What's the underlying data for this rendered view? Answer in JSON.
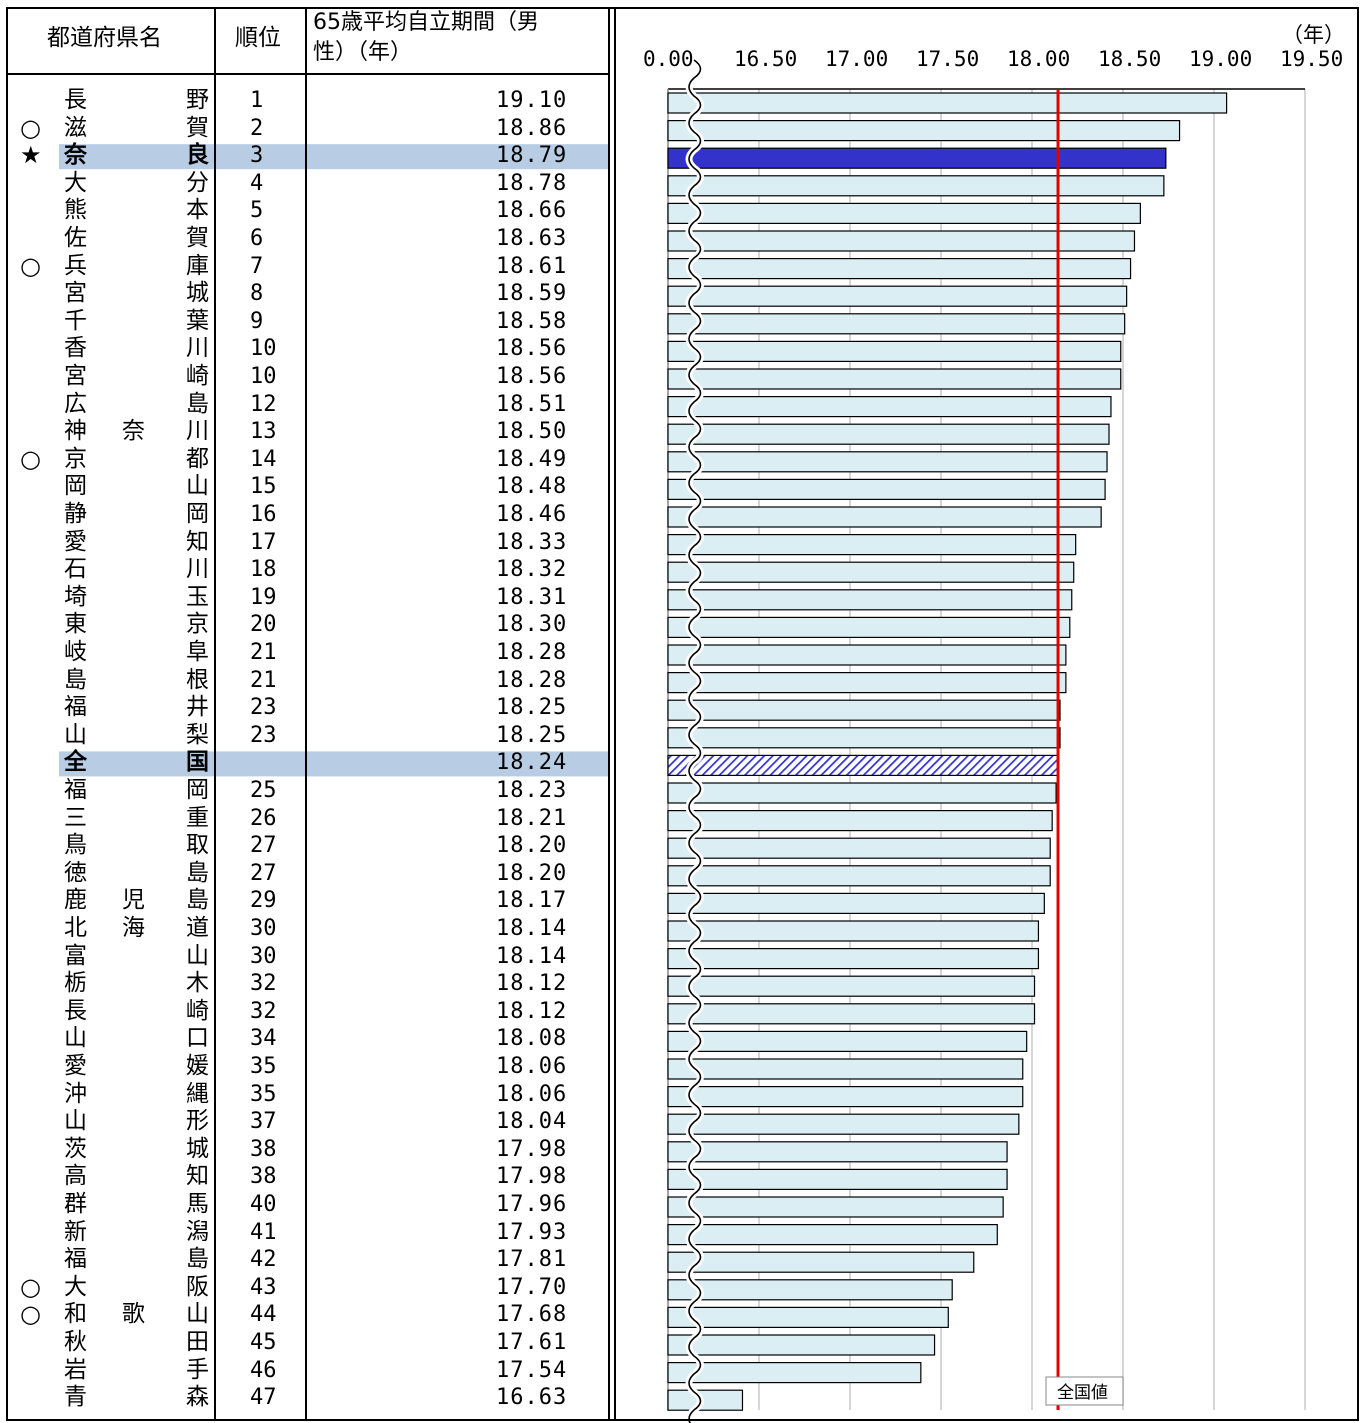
{
  "headers": {
    "pref": "都道府県名",
    "rank": "順位",
    "value_line1": "65歳平均自立期間（男",
    "value_line2": "性）（年）"
  },
  "rows": [
    {
      "mark": "",
      "chars": [
        "長",
        "",
        "野"
      ],
      "rank": "1",
      "value": "19.10"
    },
    {
      "mark": "○",
      "chars": [
        "滋",
        "",
        "賀"
      ],
      "rank": "2",
      "value": "18.86"
    },
    {
      "mark": "★",
      "chars": [
        "奈",
        "",
        "良"
      ],
      "rank": "3",
      "value": "18.79",
      "highlight": "nara"
    },
    {
      "mark": "",
      "chars": [
        "大",
        "",
        "分"
      ],
      "rank": "4",
      "value": "18.78"
    },
    {
      "mark": "",
      "chars": [
        "熊",
        "",
        "本"
      ],
      "rank": "5",
      "value": "18.66"
    },
    {
      "mark": "",
      "chars": [
        "佐",
        "",
        "賀"
      ],
      "rank": "6",
      "value": "18.63"
    },
    {
      "mark": "○",
      "chars": [
        "兵",
        "",
        "庫"
      ],
      "rank": "7",
      "value": "18.61"
    },
    {
      "mark": "",
      "chars": [
        "宮",
        "",
        "城"
      ],
      "rank": "8",
      "value": "18.59"
    },
    {
      "mark": "",
      "chars": [
        "千",
        "",
        "葉"
      ],
      "rank": "9",
      "value": "18.58"
    },
    {
      "mark": "",
      "chars": [
        "香",
        "",
        "川"
      ],
      "rank": "10",
      "value": "18.56"
    },
    {
      "mark": "",
      "chars": [
        "宮",
        "",
        "崎"
      ],
      "rank": "10",
      "value": "18.56"
    },
    {
      "mark": "",
      "chars": [
        "広",
        "",
        "島"
      ],
      "rank": "12",
      "value": "18.51"
    },
    {
      "mark": "",
      "chars": [
        "神",
        "奈",
        "川"
      ],
      "rank": "13",
      "value": "18.50"
    },
    {
      "mark": "○",
      "chars": [
        "京",
        "",
        "都"
      ],
      "rank": "14",
      "value": "18.49"
    },
    {
      "mark": "",
      "chars": [
        "岡",
        "",
        "山"
      ],
      "rank": "15",
      "value": "18.48"
    },
    {
      "mark": "",
      "chars": [
        "静",
        "",
        "岡"
      ],
      "rank": "16",
      "value": "18.46"
    },
    {
      "mark": "",
      "chars": [
        "愛",
        "",
        "知"
      ],
      "rank": "17",
      "value": "18.33"
    },
    {
      "mark": "",
      "chars": [
        "石",
        "",
        "川"
      ],
      "rank": "18",
      "value": "18.32"
    },
    {
      "mark": "",
      "chars": [
        "埼",
        "",
        "玉"
      ],
      "rank": "19",
      "value": "18.31"
    },
    {
      "mark": "",
      "chars": [
        "東",
        "",
        "京"
      ],
      "rank": "20",
      "value": "18.30"
    },
    {
      "mark": "",
      "chars": [
        "岐",
        "",
        "阜"
      ],
      "rank": "21",
      "value": "18.28"
    },
    {
      "mark": "",
      "chars": [
        "島",
        "",
        "根"
      ],
      "rank": "21",
      "value": "18.28"
    },
    {
      "mark": "",
      "chars": [
        "福",
        "",
        "井"
      ],
      "rank": "23",
      "value": "18.25"
    },
    {
      "mark": "",
      "chars": [
        "山",
        "",
        "梨"
      ],
      "rank": "23",
      "value": "18.25"
    },
    {
      "mark": "",
      "chars": [
        "全",
        "",
        "国"
      ],
      "rank": "",
      "value": "18.24",
      "highlight": "national"
    },
    {
      "mark": "",
      "chars": [
        "福",
        "",
        "岡"
      ],
      "rank": "25",
      "value": "18.23"
    },
    {
      "mark": "",
      "chars": [
        "三",
        "",
        "重"
      ],
      "rank": "26",
      "value": "18.21"
    },
    {
      "mark": "",
      "chars": [
        "鳥",
        "",
        "取"
      ],
      "rank": "27",
      "value": "18.20"
    },
    {
      "mark": "",
      "chars": [
        "徳",
        "",
        "島"
      ],
      "rank": "27",
      "value": "18.20"
    },
    {
      "mark": "",
      "chars": [
        "鹿",
        "児",
        "島"
      ],
      "rank": "29",
      "value": "18.17"
    },
    {
      "mark": "",
      "chars": [
        "北",
        "海",
        "道"
      ],
      "rank": "30",
      "value": "18.14"
    },
    {
      "mark": "",
      "chars": [
        "富",
        "",
        "山"
      ],
      "rank": "30",
      "value": "18.14"
    },
    {
      "mark": "",
      "chars": [
        "栃",
        "",
        "木"
      ],
      "rank": "32",
      "value": "18.12"
    },
    {
      "mark": "",
      "chars": [
        "長",
        "",
        "崎"
      ],
      "rank": "32",
      "value": "18.12"
    },
    {
      "mark": "",
      "chars": [
        "山",
        "",
        "口"
      ],
      "rank": "34",
      "value": "18.08"
    },
    {
      "mark": "",
      "chars": [
        "愛",
        "",
        "媛"
      ],
      "rank": "35",
      "value": "18.06"
    },
    {
      "mark": "",
      "chars": [
        "沖",
        "",
        "縄"
      ],
      "rank": "35",
      "value": "18.06"
    },
    {
      "mark": "",
      "chars": [
        "山",
        "",
        "形"
      ],
      "rank": "37",
      "value": "18.04"
    },
    {
      "mark": "",
      "chars": [
        "茨",
        "",
        "城"
      ],
      "rank": "38",
      "value": "17.98"
    },
    {
      "mark": "",
      "chars": [
        "高",
        "",
        "知"
      ],
      "rank": "38",
      "value": "17.98"
    },
    {
      "mark": "",
      "chars": [
        "群",
        "",
        "馬"
      ],
      "rank": "40",
      "value": "17.96"
    },
    {
      "mark": "",
      "chars": [
        "新",
        "",
        "潟"
      ],
      "rank": "41",
      "value": "17.93"
    },
    {
      "mark": "",
      "chars": [
        "福",
        "",
        "島"
      ],
      "rank": "42",
      "value": "17.81"
    },
    {
      "mark": "○",
      "chars": [
        "大",
        "",
        "阪"
      ],
      "rank": "43",
      "value": "17.70"
    },
    {
      "mark": "○",
      "chars": [
        "和",
        "歌",
        "山"
      ],
      "rank": "44",
      "value": "17.68"
    },
    {
      "mark": "",
      "chars": [
        "秋",
        "",
        "田"
      ],
      "rank": "45",
      "value": "17.61"
    },
    {
      "mark": "",
      "chars": [
        "岩",
        "",
        "手"
      ],
      "rank": "46",
      "value": "17.54"
    },
    {
      "mark": "",
      "chars": [
        "青",
        "",
        "森"
      ],
      "rank": "47",
      "value": "16.63"
    }
  ],
  "chart_data": {
    "type": "bar",
    "orientation": "horizontal",
    "unit_label": "（年）",
    "axis_tick_labels": [
      "0.00",
      "16.50",
      "17.00",
      "17.50",
      "18.00",
      "18.50",
      "19.00",
      "19.50"
    ],
    "axis_break": true,
    "xlim": [
      16.25,
      19.5
    ],
    "reference_line": {
      "label": "全国値",
      "value": 18.24,
      "color": "#e00000"
    },
    "colors": {
      "bar": "#dbeef4",
      "highlight_bar": "#3333cc",
      "national_hatch": "#3333cc",
      "grid": "#c8c8c8",
      "row_highlight": "#b8cce4"
    },
    "categories": [
      "長野",
      "滋賀",
      "奈良",
      "大分",
      "熊本",
      "佐賀",
      "兵庫",
      "宮城",
      "千葉",
      "香川",
      "宮崎",
      "広島",
      "神奈川",
      "京都",
      "岡山",
      "静岡",
      "愛知",
      "石川",
      "埼玉",
      "東京",
      "岐阜",
      "島根",
      "福井",
      "山梨",
      "全国",
      "福岡",
      "三重",
      "鳥取",
      "徳島",
      "鹿児島",
      "北海道",
      "富山",
      "栃木",
      "長崎",
      "山口",
      "愛媛",
      "沖縄",
      "山形",
      "茨城",
      "高知",
      "群馬",
      "新潟",
      "福島",
      "大阪",
      "和歌山",
      "秋田",
      "岩手",
      "青森"
    ],
    "values": [
      19.1,
      18.86,
      18.79,
      18.78,
      18.66,
      18.63,
      18.61,
      18.59,
      18.58,
      18.56,
      18.56,
      18.51,
      18.5,
      18.49,
      18.48,
      18.46,
      18.33,
      18.32,
      18.31,
      18.3,
      18.28,
      18.28,
      18.25,
      18.25,
      18.24,
      18.23,
      18.21,
      18.2,
      18.2,
      18.17,
      18.14,
      18.14,
      18.12,
      18.12,
      18.08,
      18.06,
      18.06,
      18.04,
      17.98,
      17.98,
      17.96,
      17.93,
      17.81,
      17.7,
      17.68,
      17.61,
      17.54,
      16.63
    ]
  }
}
